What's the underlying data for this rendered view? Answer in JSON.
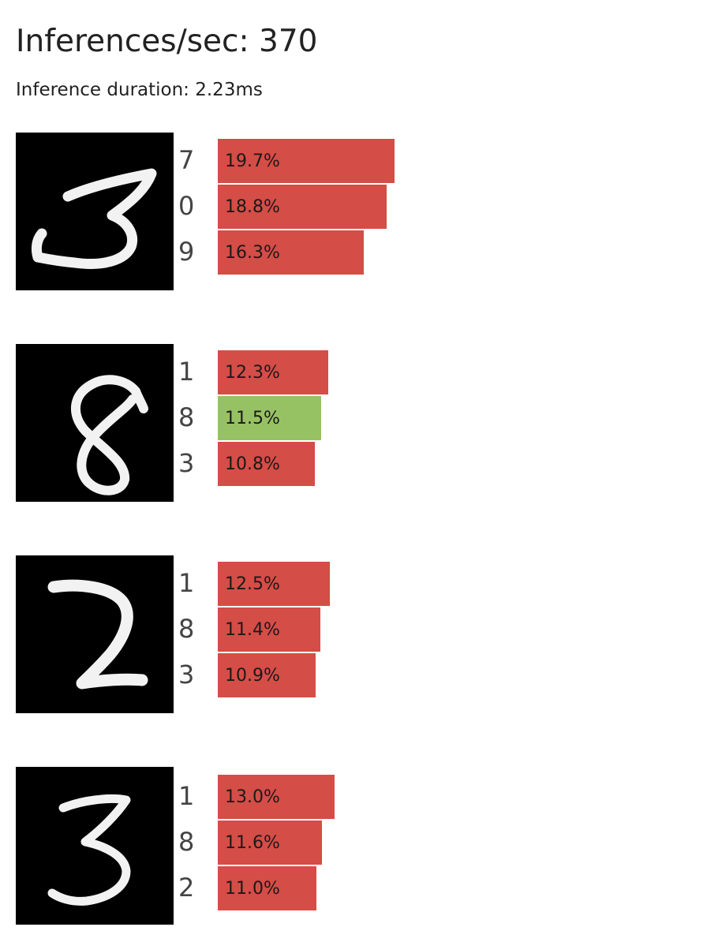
{
  "header": {
    "title": "Inferences/sec: 370",
    "subtitle": "Inference duration: 2.23ms"
  },
  "colors": {
    "incorrect": "#d44d46",
    "correct": "#97c264"
  },
  "samples": [
    {
      "image_icon": "handwritten-digit-3",
      "predictions": [
        {
          "label": "7",
          "percent": "19.7%",
          "value": 19.7,
          "correct": false
        },
        {
          "label": "0",
          "percent": "18.8%",
          "value": 18.8,
          "correct": false
        },
        {
          "label": "9",
          "percent": "16.3%",
          "value": 16.3,
          "correct": false
        }
      ]
    },
    {
      "image_icon": "handwritten-digit-8",
      "predictions": [
        {
          "label": "1",
          "percent": "12.3%",
          "value": 12.3,
          "correct": false
        },
        {
          "label": "8",
          "percent": "11.5%",
          "value": 11.5,
          "correct": true
        },
        {
          "label": "3",
          "percent": "10.8%",
          "value": 10.8,
          "correct": false
        }
      ]
    },
    {
      "image_icon": "handwritten-digit-2",
      "predictions": [
        {
          "label": "1",
          "percent": "12.5%",
          "value": 12.5,
          "correct": false
        },
        {
          "label": "8",
          "percent": "11.4%",
          "value": 11.4,
          "correct": false
        },
        {
          "label": "3",
          "percent": "10.9%",
          "value": 10.9,
          "correct": false
        }
      ]
    },
    {
      "image_icon": "handwritten-digit-3",
      "predictions": [
        {
          "label": "1",
          "percent": "13.0%",
          "value": 13.0,
          "correct": false
        },
        {
          "label": "8",
          "percent": "11.6%",
          "value": 11.6,
          "correct": false
        },
        {
          "label": "2",
          "percent": "11.0%",
          "value": 11.0,
          "correct": false
        }
      ]
    }
  ]
}
